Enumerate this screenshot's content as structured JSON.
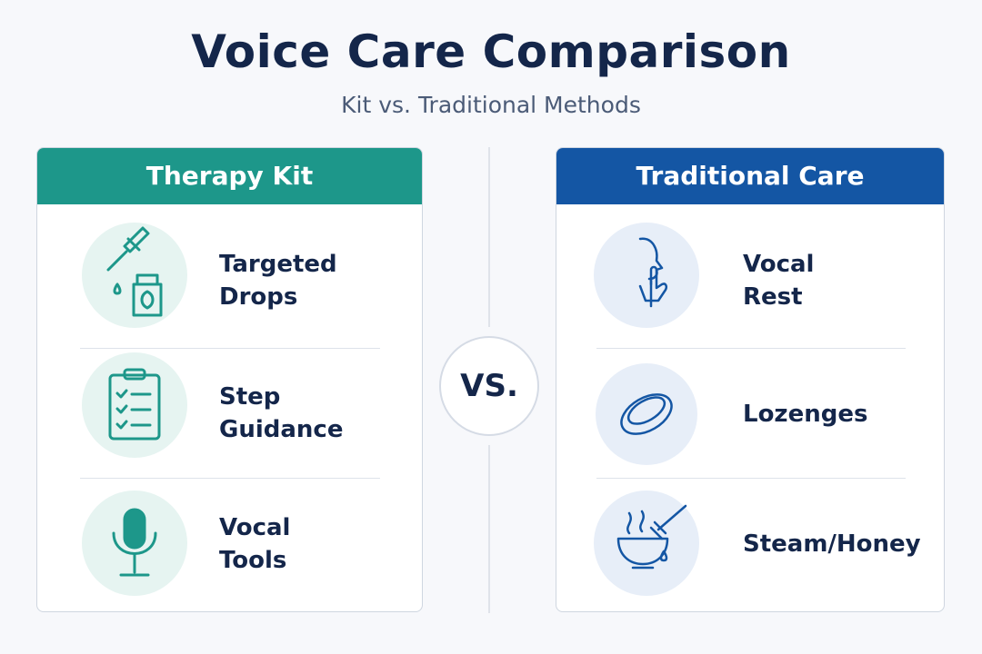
{
  "header": {
    "title": "Voice Care Comparison",
    "subtitle": "Kit vs. Traditional Methods"
  },
  "vs_label": "VS.",
  "panels": [
    {
      "title": "Therapy Kit",
      "items": [
        {
          "lines": [
            "Targeted",
            "Drops"
          ]
        },
        {
          "lines": [
            "Step",
            "Guidance"
          ]
        },
        {
          "lines": [
            "Vocal",
            "Tools"
          ]
        }
      ]
    },
    {
      "title": "Traditional Care",
      "items": [
        {
          "lines": [
            "Vocal",
            "Rest"
          ]
        },
        {
          "lines": [
            "Lozenges"
          ]
        },
        {
          "lines": [
            "Steam/Honey"
          ]
        }
      ]
    }
  ]
}
